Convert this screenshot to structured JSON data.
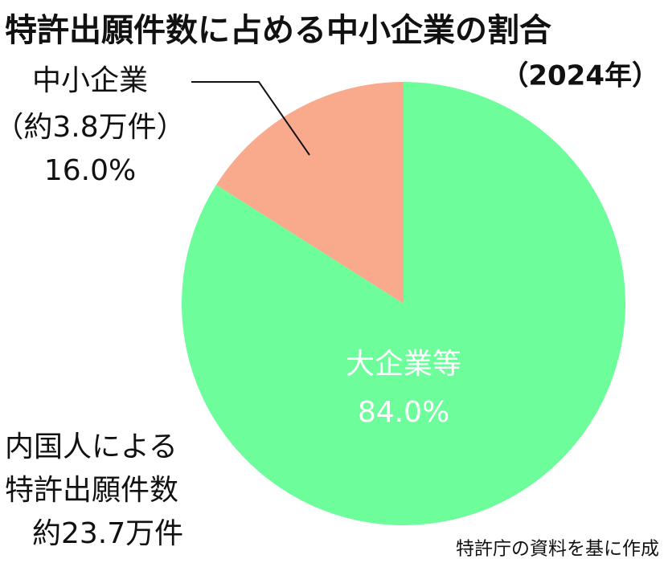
{
  "chart_data": {
    "type": "pie",
    "title": "特許出願件数に占める中小企業の割合",
    "subtitle": "（2024年）",
    "categories": [
      "大企業等",
      "中小企業"
    ],
    "values": [
      84.0,
      16.0
    ],
    "value_labels": [
      "84.0%",
      "16.0%"
    ],
    "sub_labels": [
      null,
      "（約3.8万件）"
    ],
    "colors": [
      "#6dfd9b",
      "#f9a98c"
    ],
    "annotation": [
      "内国人による",
      "特許出願件数",
      "約23.7万件"
    ],
    "source": "特許庁の資料を基に作成"
  }
}
